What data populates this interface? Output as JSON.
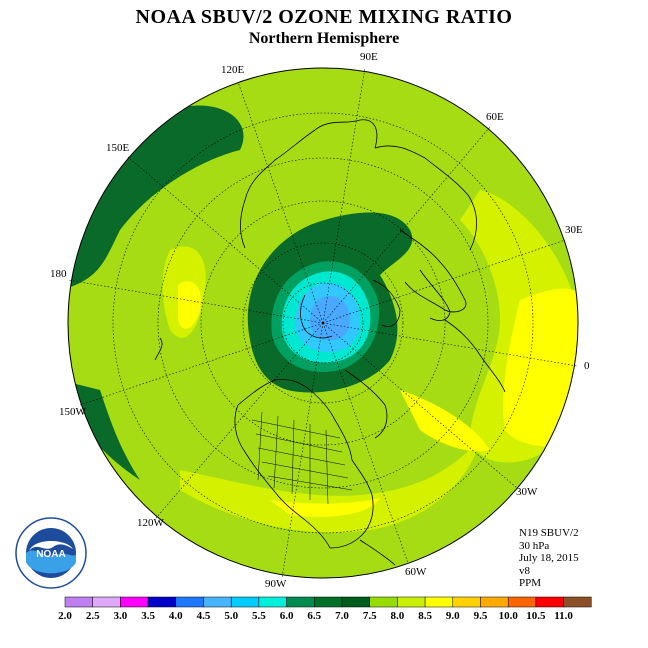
{
  "title": "NOAA SBUV/2 OZONE MIXING RATIO",
  "subtitle": "Northern Hemisphere",
  "lon_labels": [
    {
      "id": "lon-90e",
      "text": "90E"
    },
    {
      "id": "lon-60e",
      "text": "60E"
    },
    {
      "id": "lon-30e",
      "text": "30E"
    },
    {
      "id": "lon-0",
      "text": "0"
    },
    {
      "id": "lon-30w",
      "text": "30W"
    },
    {
      "id": "lon-60w",
      "text": "60W"
    },
    {
      "id": "lon-90w",
      "text": "90W"
    },
    {
      "id": "lon-120w",
      "text": "120W"
    },
    {
      "id": "lon-150w",
      "text": "150W"
    },
    {
      "id": "lon-180",
      "text": "180"
    },
    {
      "id": "lon-150e",
      "text": "150E"
    },
    {
      "id": "lon-120e",
      "text": "120E"
    }
  ],
  "info": {
    "satellite": "N19 SBUV/2",
    "level": "30 hPa",
    "date": "July 18, 2015",
    "version": "v8",
    "units": "PPM"
  },
  "logo": {
    "text": "NOAA",
    "ring_text": "NATIONAL OCEANIC AND ATMOSPHERIC ADMINISTRATION · U.S. DEPARTMENT OF COMMERCE"
  },
  "colorbar": {
    "labels": [
      "2.0",
      "2.5",
      "3.0",
      "3.5",
      "4.0",
      "4.5",
      "5.0",
      "5.5",
      "6.0",
      "6.5",
      "7.0",
      "7.5",
      "8.0",
      "8.5",
      "9.0",
      "9.5",
      "10.0",
      "10.5",
      "11.0"
    ],
    "colors": [
      "#c080f0",
      "#e0a8f8",
      "#ff00ff",
      "#0000c8",
      "#1e78ff",
      "#46b4ff",
      "#00ccff",
      "#00f0dc",
      "#008c50",
      "#007028",
      "#005c1c",
      "#96dc00",
      "#c8f000",
      "#ffff00",
      "#ffd200",
      "#ffaa00",
      "#ff6400",
      "#ff0000",
      "#8c5028"
    ]
  }
}
